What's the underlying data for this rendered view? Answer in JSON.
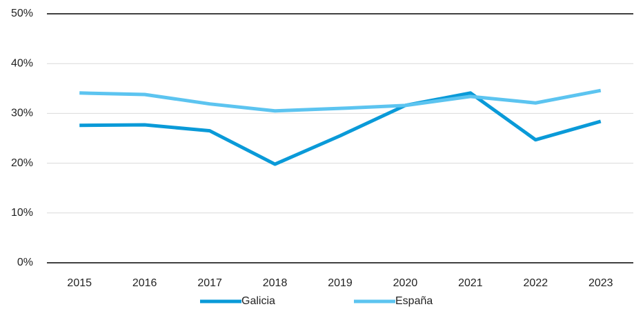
{
  "chart_data": {
    "type": "line",
    "categories": [
      "2015",
      "2016",
      "2017",
      "2018",
      "2019",
      "2020",
      "2021",
      "2022",
      "2023"
    ],
    "series": [
      {
        "name": "Galicia",
        "color": "#0a9ad8",
        "values": [
          27.6,
          27.7,
          26.5,
          19.8,
          25.5,
          31.6,
          34.1,
          24.7,
          28.4
        ]
      },
      {
        "name": "España",
        "color": "#5cc4f0",
        "values": [
          34.1,
          33.8,
          31.9,
          30.5,
          31.0,
          31.6,
          33.4,
          32.1,
          34.6
        ]
      }
    ],
    "ylim": [
      0,
      50
    ],
    "yticks": [
      {
        "value": 0,
        "label": "0%"
      },
      {
        "value": 10,
        "label": "10%"
      },
      {
        "value": 20,
        "label": "20%"
      },
      {
        "value": 30,
        "label": "30%"
      },
      {
        "value": 40,
        "label": "40%"
      },
      {
        "value": 50,
        "label": "50%"
      }
    ],
    "grid": true,
    "legend": "bottom"
  }
}
